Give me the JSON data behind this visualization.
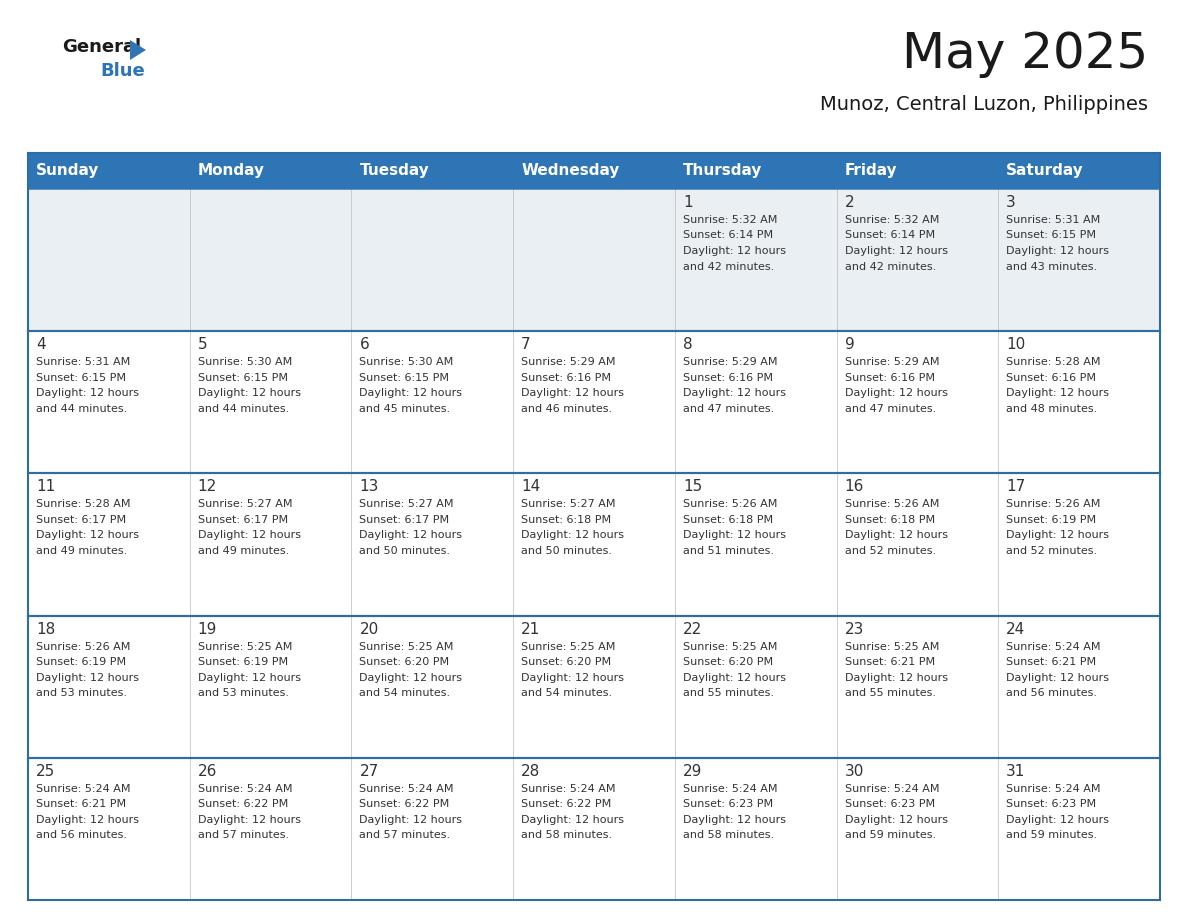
{
  "title": "May 2025",
  "subtitle": "Munoz, Central Luzon, Philippines",
  "header_bg_color": "#2E75B6",
  "header_text_color": "#FFFFFF",
  "row0_bg_color": "#E8EEF4",
  "cell_bg_color": "#FFFFFF",
  "border_color": "#2E6DA4",
  "text_color": "#333333",
  "day_headers": [
    "Sunday",
    "Monday",
    "Tuesday",
    "Wednesday",
    "Thursday",
    "Friday",
    "Saturday"
  ],
  "days_data": [
    {
      "day": 1,
      "col": 4,
      "row": 0,
      "sunrise": "5:32 AM",
      "sunset": "6:14 PM",
      "daylight_line1": "Daylight: 12 hours",
      "daylight_line2": "and 42 minutes."
    },
    {
      "day": 2,
      "col": 5,
      "row": 0,
      "sunrise": "5:32 AM",
      "sunset": "6:14 PM",
      "daylight_line1": "Daylight: 12 hours",
      "daylight_line2": "and 42 minutes."
    },
    {
      "day": 3,
      "col": 6,
      "row": 0,
      "sunrise": "5:31 AM",
      "sunset": "6:15 PM",
      "daylight_line1": "Daylight: 12 hours",
      "daylight_line2": "and 43 minutes."
    },
    {
      "day": 4,
      "col": 0,
      "row": 1,
      "sunrise": "5:31 AM",
      "sunset": "6:15 PM",
      "daylight_line1": "Daylight: 12 hours",
      "daylight_line2": "and 44 minutes."
    },
    {
      "day": 5,
      "col": 1,
      "row": 1,
      "sunrise": "5:30 AM",
      "sunset": "6:15 PM",
      "daylight_line1": "Daylight: 12 hours",
      "daylight_line2": "and 44 minutes."
    },
    {
      "day": 6,
      "col": 2,
      "row": 1,
      "sunrise": "5:30 AM",
      "sunset": "6:15 PM",
      "daylight_line1": "Daylight: 12 hours",
      "daylight_line2": "and 45 minutes."
    },
    {
      "day": 7,
      "col": 3,
      "row": 1,
      "sunrise": "5:29 AM",
      "sunset": "6:16 PM",
      "daylight_line1": "Daylight: 12 hours",
      "daylight_line2": "and 46 minutes."
    },
    {
      "day": 8,
      "col": 4,
      "row": 1,
      "sunrise": "5:29 AM",
      "sunset": "6:16 PM",
      "daylight_line1": "Daylight: 12 hours",
      "daylight_line2": "and 47 minutes."
    },
    {
      "day": 9,
      "col": 5,
      "row": 1,
      "sunrise": "5:29 AM",
      "sunset": "6:16 PM",
      "daylight_line1": "Daylight: 12 hours",
      "daylight_line2": "and 47 minutes."
    },
    {
      "day": 10,
      "col": 6,
      "row": 1,
      "sunrise": "5:28 AM",
      "sunset": "6:16 PM",
      "daylight_line1": "Daylight: 12 hours",
      "daylight_line2": "and 48 minutes."
    },
    {
      "day": 11,
      "col": 0,
      "row": 2,
      "sunrise": "5:28 AM",
      "sunset": "6:17 PM",
      "daylight_line1": "Daylight: 12 hours",
      "daylight_line2": "and 49 minutes."
    },
    {
      "day": 12,
      "col": 1,
      "row": 2,
      "sunrise": "5:27 AM",
      "sunset": "6:17 PM",
      "daylight_line1": "Daylight: 12 hours",
      "daylight_line2": "and 49 minutes."
    },
    {
      "day": 13,
      "col": 2,
      "row": 2,
      "sunrise": "5:27 AM",
      "sunset": "6:17 PM",
      "daylight_line1": "Daylight: 12 hours",
      "daylight_line2": "and 50 minutes."
    },
    {
      "day": 14,
      "col": 3,
      "row": 2,
      "sunrise": "5:27 AM",
      "sunset": "6:18 PM",
      "daylight_line1": "Daylight: 12 hours",
      "daylight_line2": "and 50 minutes."
    },
    {
      "day": 15,
      "col": 4,
      "row": 2,
      "sunrise": "5:26 AM",
      "sunset": "6:18 PM",
      "daylight_line1": "Daylight: 12 hours",
      "daylight_line2": "and 51 minutes."
    },
    {
      "day": 16,
      "col": 5,
      "row": 2,
      "sunrise": "5:26 AM",
      "sunset": "6:18 PM",
      "daylight_line1": "Daylight: 12 hours",
      "daylight_line2": "and 52 minutes."
    },
    {
      "day": 17,
      "col": 6,
      "row": 2,
      "sunrise": "5:26 AM",
      "sunset": "6:19 PM",
      "daylight_line1": "Daylight: 12 hours",
      "daylight_line2": "and 52 minutes."
    },
    {
      "day": 18,
      "col": 0,
      "row": 3,
      "sunrise": "5:26 AM",
      "sunset": "6:19 PM",
      "daylight_line1": "Daylight: 12 hours",
      "daylight_line2": "and 53 minutes."
    },
    {
      "day": 19,
      "col": 1,
      "row": 3,
      "sunrise": "5:25 AM",
      "sunset": "6:19 PM",
      "daylight_line1": "Daylight: 12 hours",
      "daylight_line2": "and 53 minutes."
    },
    {
      "day": 20,
      "col": 2,
      "row": 3,
      "sunrise": "5:25 AM",
      "sunset": "6:20 PM",
      "daylight_line1": "Daylight: 12 hours",
      "daylight_line2": "and 54 minutes."
    },
    {
      "day": 21,
      "col": 3,
      "row": 3,
      "sunrise": "5:25 AM",
      "sunset": "6:20 PM",
      "daylight_line1": "Daylight: 12 hours",
      "daylight_line2": "and 54 minutes."
    },
    {
      "day": 22,
      "col": 4,
      "row": 3,
      "sunrise": "5:25 AM",
      "sunset": "6:20 PM",
      "daylight_line1": "Daylight: 12 hours",
      "daylight_line2": "and 55 minutes."
    },
    {
      "day": 23,
      "col": 5,
      "row": 3,
      "sunrise": "5:25 AM",
      "sunset": "6:21 PM",
      "daylight_line1": "Daylight: 12 hours",
      "daylight_line2": "and 55 minutes."
    },
    {
      "day": 24,
      "col": 6,
      "row": 3,
      "sunrise": "5:24 AM",
      "sunset": "6:21 PM",
      "daylight_line1": "Daylight: 12 hours",
      "daylight_line2": "and 56 minutes."
    },
    {
      "day": 25,
      "col": 0,
      "row": 4,
      "sunrise": "5:24 AM",
      "sunset": "6:21 PM",
      "daylight_line1": "Daylight: 12 hours",
      "daylight_line2": "and 56 minutes."
    },
    {
      "day": 26,
      "col": 1,
      "row": 4,
      "sunrise": "5:24 AM",
      "sunset": "6:22 PM",
      "daylight_line1": "Daylight: 12 hours",
      "daylight_line2": "and 57 minutes."
    },
    {
      "day": 27,
      "col": 2,
      "row": 4,
      "sunrise": "5:24 AM",
      "sunset": "6:22 PM",
      "daylight_line1": "Daylight: 12 hours",
      "daylight_line2": "and 57 minutes."
    },
    {
      "day": 28,
      "col": 3,
      "row": 4,
      "sunrise": "5:24 AM",
      "sunset": "6:22 PM",
      "daylight_line1": "Daylight: 12 hours",
      "daylight_line2": "and 58 minutes."
    },
    {
      "day": 29,
      "col": 4,
      "row": 4,
      "sunrise": "5:24 AM",
      "sunset": "6:23 PM",
      "daylight_line1": "Daylight: 12 hours",
      "daylight_line2": "and 58 minutes."
    },
    {
      "day": 30,
      "col": 5,
      "row": 4,
      "sunrise": "5:24 AM",
      "sunset": "6:23 PM",
      "daylight_line1": "Daylight: 12 hours",
      "daylight_line2": "and 59 minutes."
    },
    {
      "day": 31,
      "col": 6,
      "row": 4,
      "sunrise": "5:24 AM",
      "sunset": "6:23 PM",
      "daylight_line1": "Daylight: 12 hours",
      "daylight_line2": "and 59 minutes."
    }
  ]
}
